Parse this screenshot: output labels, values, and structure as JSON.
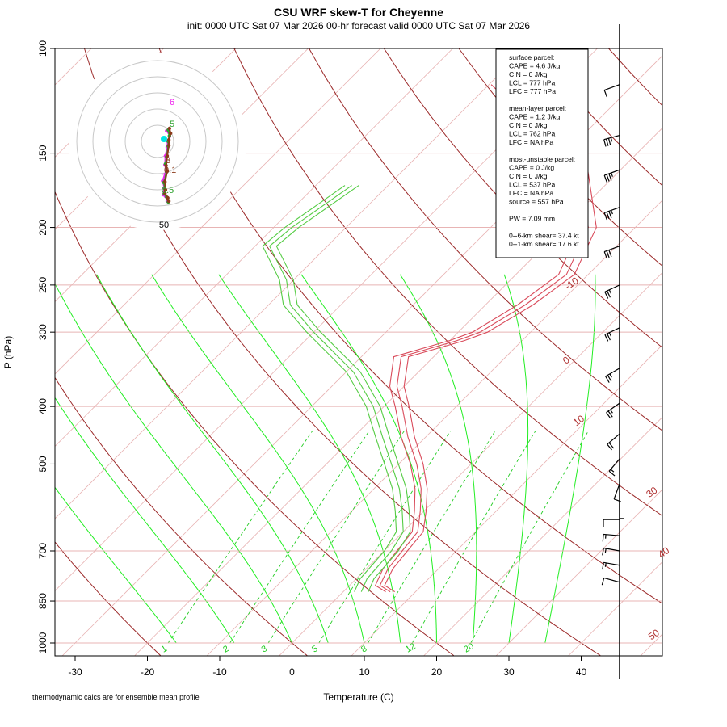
{
  "chart_data": {
    "type": "skew-t",
    "title": "CSU WRF skew-T for Cheyenne",
    "subtitle": "init: 0000 UTC Sat 07 Mar 2026     00-hr forecast valid 0000 UTC Sat 07 Mar 2026",
    "xlabel": "Temperature (C)",
    "ylabel": "P (hPa)",
    "footnote": "thermodynamic calcs are for ensemble mean profile",
    "x_ticks": [
      -30,
      -20,
      -10,
      0,
      10,
      20,
      30,
      40
    ],
    "y_ticks": [
      100,
      150,
      200,
      250,
      300,
      400,
      500,
      700,
      850,
      1000
    ],
    "isotherm_labels": [
      "-10",
      "0",
      "10",
      "30",
      "40",
      "50"
    ],
    "isotherm_label_values": [
      -10,
      0,
      10,
      30,
      40,
      50
    ],
    "mixing_ratio_labels": [
      "1",
      "2",
      "3",
      "5",
      "8",
      "12",
      "20"
    ],
    "mixing_ratio_label_values": [
      1,
      2,
      3,
      5,
      8,
      12,
      20
    ],
    "temperature_profile": [
      {
        "p": 820,
        "t": 6.5
      },
      {
        "p": 800,
        "t": 4.2
      },
      {
        "p": 750,
        "t": 3.0
      },
      {
        "p": 700,
        "t": 2.5
      },
      {
        "p": 650,
        "t": 2.0
      },
      {
        "p": 600,
        "t": -0.5
      },
      {
        "p": 550,
        "t": -3.5
      },
      {
        "p": 500,
        "t": -7.5
      },
      {
        "p": 450,
        "t": -12.5
      },
      {
        "p": 400,
        "t": -17.5
      },
      {
        "p": 370,
        "t": -21.0
      },
      {
        "p": 330,
        "t": -24.5
      },
      {
        "p": 310,
        "t": -19.0
      },
      {
        "p": 300,
        "t": -17.0
      },
      {
        "p": 270,
        "t": -14.5
      },
      {
        "p": 240,
        "t": -13.0
      },
      {
        "p": 200,
        "t": -16.5
      },
      {
        "p": 155,
        "t": -27.0
      },
      {
        "p": 130,
        "t": -39.5
      },
      {
        "p": 115,
        "t": -48.5
      }
    ],
    "dewpoint_profile": [
      {
        "p": 820,
        "t": 2.5
      },
      {
        "p": 780,
        "t": 1.5
      },
      {
        "p": 700,
        "t": 1.0
      },
      {
        "p": 650,
        "t": 0.0
      },
      {
        "p": 600,
        "t": -3.0
      },
      {
        "p": 550,
        "t": -6.5
      },
      {
        "p": 500,
        "t": -11.0
      },
      {
        "p": 450,
        "t": -16.0
      },
      {
        "p": 400,
        "t": -21.5
      },
      {
        "p": 350,
        "t": -29.0
      },
      {
        "p": 300,
        "t": -40.0
      },
      {
        "p": 270,
        "t": -47.0
      },
      {
        "p": 245,
        "t": -51.0
      },
      {
        "p": 215,
        "t": -58.0
      },
      {
        "p": 200,
        "t": -57.5
      },
      {
        "p": 170,
        "t": -55.0
      }
    ],
    "ensemble_members": 3,
    "wind_profile": [
      {
        "p": 115,
        "speed": 10,
        "dir": 250
      },
      {
        "p": 140,
        "speed": 35,
        "dir": 255
      },
      {
        "p": 160,
        "speed": 35,
        "dir": 250
      },
      {
        "p": 185,
        "speed": 35,
        "dir": 250
      },
      {
        "p": 215,
        "speed": 30,
        "dir": 250
      },
      {
        "p": 250,
        "speed": 25,
        "dir": 245
      },
      {
        "p": 295,
        "speed": 25,
        "dir": 245
      },
      {
        "p": 345,
        "speed": 25,
        "dir": 240
      },
      {
        "p": 395,
        "speed": 25,
        "dir": 235
      },
      {
        "p": 445,
        "speed": 20,
        "dir": 230
      },
      {
        "p": 490,
        "speed": 15,
        "dir": 220
      },
      {
        "p": 540,
        "speed": 10,
        "dir": 200
      },
      {
        "p": 580,
        "speed": 5,
        "dir": 180
      },
      {
        "p": 620,
        "speed": 10,
        "dir": 270
      },
      {
        "p": 660,
        "speed": 15,
        "dir": 275
      },
      {
        "p": 700,
        "speed": 15,
        "dir": 280
      },
      {
        "p": 740,
        "speed": 15,
        "dir": 280
      },
      {
        "p": 790,
        "speed": 10,
        "dir": 285
      }
    ],
    "hodograph": {
      "ring_label": "50",
      "height_labels": [
        "6",
        "5",
        "3",
        "1",
        "0.5",
        "0.1"
      ],
      "members": [
        [
          [
            -1,
            25
          ],
          [
            3,
            23
          ],
          [
            4,
            18
          ],
          [
            1,
            12
          ],
          [
            0,
            5
          ],
          [
            -3,
            -6
          ],
          [
            -4,
            -17
          ],
          [
            -2,
            -24
          ],
          [
            -8,
            -37
          ],
          [
            -5,
            -46
          ],
          [
            -7,
            -54
          ],
          [
            -3,
            -56
          ],
          [
            0,
            -62
          ]
        ],
        [
          [
            2,
            26
          ],
          [
            4,
            19
          ],
          [
            2,
            12
          ],
          [
            2,
            6
          ],
          [
            -1,
            -7
          ],
          [
            -3,
            -16
          ],
          [
            -1,
            -26
          ],
          [
            -6,
            -39
          ],
          [
            -4,
            -47
          ],
          [
            -5,
            -53
          ],
          [
            -1,
            -57
          ],
          [
            2,
            -63
          ]
        ],
        [
          [
            4,
            28
          ],
          [
            6,
            22
          ],
          [
            3,
            14
          ],
          [
            3,
            7
          ],
          [
            0,
            -6
          ],
          [
            -2,
            -18
          ],
          [
            0,
            -25
          ],
          [
            -4,
            -38
          ],
          [
            -3,
            -48
          ],
          [
            -4,
            -52
          ],
          [
            1,
            -58
          ],
          [
            3,
            -62
          ]
        ]
      ]
    }
  },
  "info_box": {
    "lines": [
      "surface parcel:",
      "CAPE = 4.6 J/kg",
      "CIN = 0 J/kg",
      "LCL = 777 hPa",
      "LFC = 777 hPa",
      "mean-layer parcel:",
      "CAPE = 1.2 J/kg",
      "CIN = 0 J/kg",
      "LCL = 762 hPa",
      "LFC = NA hPa",
      "most-unstable parcel:",
      "CAPE = 0 J/kg",
      "CIN = 0 J/kg",
      "LCL = 537 hPa",
      "LFC = NA hPa",
      "source = 557 hPa",
      "PW =  7.09 mm",
      "0--6-km shear= 37.4 kt",
      "0--1-km shear= 17.6 kt"
    ]
  },
  "colors": {
    "temperature": "#d94a5a",
    "dewpoint": "#55cc44",
    "isotherm": "#e8b4b4",
    "adiabat": "#9c2a2a",
    "moist_adiabat": "#22ee22",
    "mixing_ratio": "#22cc22",
    "hodo_member_1": "#ee22ee",
    "hodo_member_2": "#2aa02a",
    "hodo_member_3": "#8b3a1a",
    "hodo_surface": "#00e5e5"
  }
}
